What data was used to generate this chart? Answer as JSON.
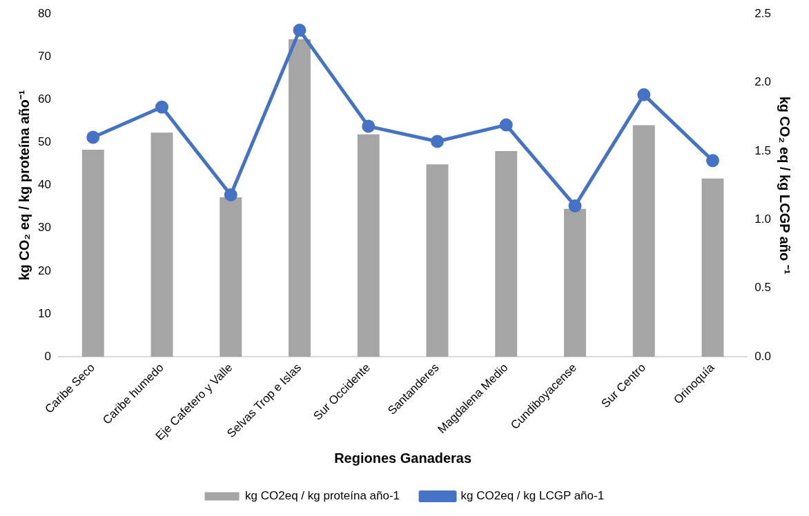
{
  "chart_data": {
    "type": "bar",
    "xlabel": "Regiones Ganaderas",
    "ylabel": "kg CO₂ eq / kg proteína año⁻¹",
    "y2label": "kg CO₂ eq / kg LCGP año ⁻¹",
    "categories": [
      "Caribe Seco",
      "Caribe humedo",
      "Eje Cafetero y Valle",
      "Selvas Trop e Islas",
      "Sur Occidente",
      "Santanderes",
      "Magdalena Medio",
      "Cundiboyacense",
      "Sur Centro",
      "Orinoquía"
    ],
    "series": [
      {
        "name": "kg CO2eq / kg proteína año-1",
        "color": "#a5a5a5",
        "values": [
          48.3,
          52.3,
          37.2,
          74.1,
          51.9,
          44.9,
          48.0,
          34.5,
          54.0,
          41.6
        ]
      },
      {
        "name": "kg CO2eq / kg LCGP año-1",
        "type": "line",
        "axis": "y2",
        "color": "#4472c4",
        "marker": "circle",
        "values": [
          1.6,
          1.82,
          1.18,
          2.38,
          1.68,
          1.57,
          1.69,
          1.1,
          1.91,
          1.43
        ]
      }
    ],
    "ylim": [
      0,
      80
    ],
    "yticks": [
      0,
      10,
      20,
      30,
      40,
      50,
      60,
      70,
      80
    ],
    "y2lim": [
      0,
      2.5
    ],
    "y2ticks": [
      {
        "value": 0,
        "label": "0.0"
      },
      {
        "value": 0.5,
        "label": "0.5"
      },
      {
        "value": 1,
        "label": "1.0"
      },
      {
        "value": 1.5,
        "label": "1.5"
      },
      {
        "value": 2,
        "label": "2.0"
      },
      {
        "value": 2.5,
        "label": "2.5"
      }
    ],
    "grid": false,
    "legend": "bottom"
  }
}
